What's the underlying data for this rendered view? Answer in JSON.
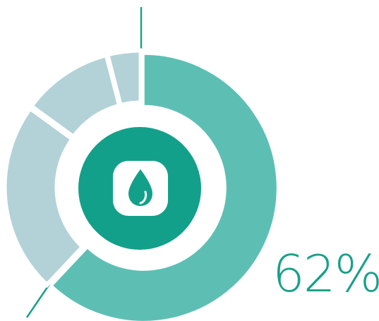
{
  "colors": {
    "main_segment": "#5dbfb3",
    "textured_segment": "#217f8c",
    "center_circle": "#13a08a",
    "leader_line": "#1aa08a",
    "percent_text": "#1aa08a"
  },
  "center_icon": "water-drop-icon",
  "percent_text": "62%",
  "chart_data": {
    "type": "pie",
    "style": "donut",
    "slices": [
      {
        "value": 62,
        "style": "solid"
      },
      {
        "value": 23,
        "style": "textured"
      },
      {
        "value": 11,
        "style": "textured"
      },
      {
        "value": 4,
        "style": "textured"
      }
    ],
    "highlight_label": "62%"
  }
}
